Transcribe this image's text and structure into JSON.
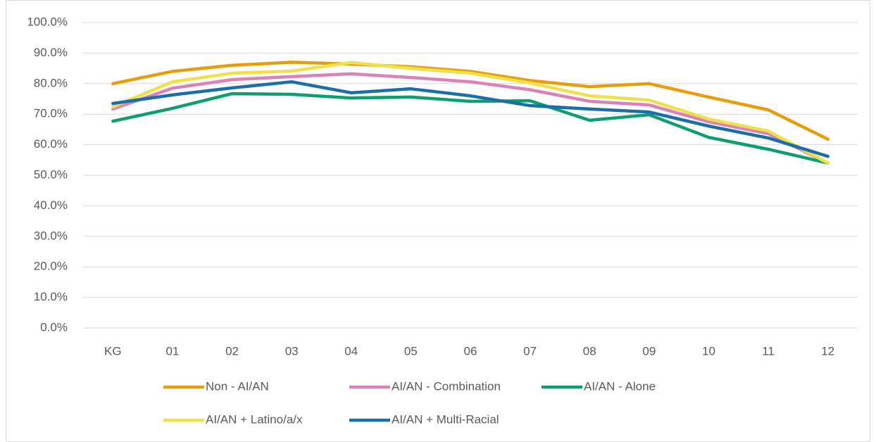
{
  "chart_data": {
    "type": "line",
    "categories": [
      "KG",
      "01",
      "02",
      "03",
      "04",
      "05",
      "06",
      "07",
      "08",
      "09",
      "10",
      "11",
      "12"
    ],
    "series": [
      {
        "name": "Non - AI/AN",
        "color": "#E69F0C",
        "values": [
          80,
          84,
          86,
          87,
          86.4,
          85.5,
          84,
          81,
          79,
          80,
          75.6,
          71.4,
          61.8
        ]
      },
      {
        "name": "AI/AN - Combination",
        "color": "#D884B8",
        "values": [
          71.7,
          78.5,
          81.3,
          82.3,
          83.2,
          82,
          80.6,
          78,
          74.2,
          73,
          67.5,
          63.6,
          54
        ]
      },
      {
        "name": "AI/AN - Alone",
        "color": "#0E9F6E",
        "values": [
          67.7,
          71.9,
          76.7,
          76.5,
          75.3,
          75.6,
          74.2,
          74.4,
          68,
          69.8,
          62.4,
          58.5,
          54
        ]
      },
      {
        "name": "AI/AN + Latino/a/x",
        "color": "#EEE24A",
        "values": [
          72.4,
          80.6,
          83.4,
          84.1,
          86.9,
          85,
          83.4,
          80.2,
          76,
          74.6,
          68.4,
          64.5,
          54
        ]
      },
      {
        "name": "AI/AN + Multi-Racial",
        "color": "#1A6FA8",
        "values": [
          73.5,
          76.3,
          78.6,
          80.6,
          77,
          78.3,
          76,
          72.8,
          71.7,
          70.7,
          66.1,
          62.2,
          56.2
        ]
      }
    ],
    "ylim": [
      0,
      100
    ],
    "yticks": [
      {
        "value": 0,
        "label": "0.0%"
      },
      {
        "value": 10,
        "label": "10.0%"
      },
      {
        "value": 20,
        "label": "20.0%"
      },
      {
        "value": 30,
        "label": "30.0%"
      },
      {
        "value": 40,
        "label": "40.0%"
      },
      {
        "value": 50,
        "label": "50.0%"
      },
      {
        "value": 60,
        "label": "60.0%"
      },
      {
        "value": 70,
        "label": "70.0%"
      },
      {
        "value": 80,
        "label": "80.0%"
      },
      {
        "value": 90,
        "label": "90.0%"
      },
      {
        "value": 100,
        "label": "100.0%"
      }
    ],
    "grid": true
  }
}
